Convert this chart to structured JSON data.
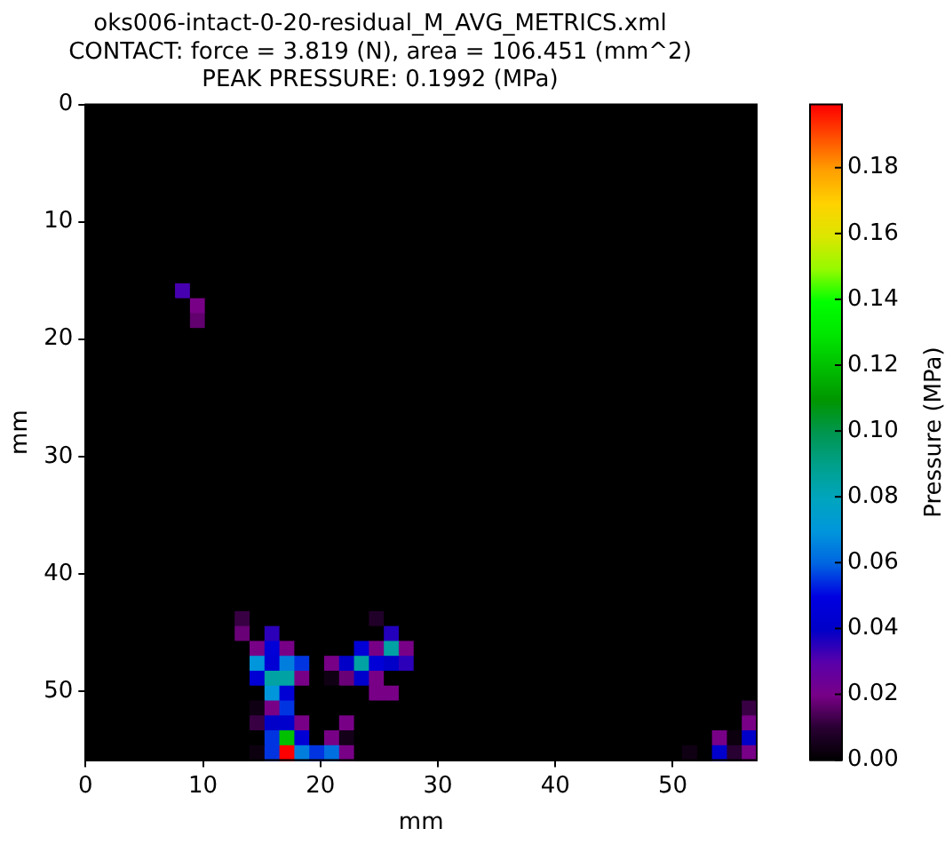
{
  "chart_data": {
    "type": "heatmap",
    "title": "oks006-intact-0-20-residual_M_AVG_METRICS.xml\nCONTACT: force = 3.819 (N), area = 106.451 (mm^2)\nPEAK PRESSURE: 0.1992 (MPa)",
    "xlabel": "mm",
    "ylabel": "mm",
    "clabel": "Pressure (MPa)",
    "xlim": [
      0,
      57.15
    ],
    "xticks": [
      0,
      10,
      20,
      30,
      40,
      50
    ],
    "ylim": [
      55.88,
      0
    ],
    "yticks": [
      0,
      10,
      20,
      30,
      40,
      50
    ],
    "clim": [
      0,
      0.1992
    ],
    "cticks": [
      {
        "value": 0,
        "label": "0.00"
      },
      0.02,
      0.04,
      0.06,
      0.08,
      {
        "value": 0.1,
        "label": "0.10"
      },
      0.12,
      0.14,
      0.16,
      0.18
    ],
    "cells": [
      [
        0,
        0,
        0,
        0,
        0,
        0,
        0,
        0,
        0,
        0,
        0,
        0,
        0,
        0,
        0,
        0,
        0,
        0,
        0,
        0,
        0,
        0,
        0,
        0,
        0,
        0,
        0,
        0,
        0,
        0,
        0,
        0,
        0,
        0,
        0,
        0,
        0,
        0,
        0,
        0,
        0,
        0,
        0,
        0,
        0
      ],
      [
        0,
        0,
        0,
        0,
        0,
        0,
        0,
        0,
        0,
        0,
        0,
        0,
        0,
        0,
        0,
        0,
        0,
        0,
        0,
        0,
        0,
        0,
        0,
        0,
        0,
        0,
        0,
        0,
        0,
        0,
        0,
        0,
        0,
        0,
        0,
        0,
        0,
        0,
        0,
        0,
        0,
        0,
        0,
        0,
        0
      ],
      [
        0,
        0,
        0,
        0,
        0,
        0,
        0,
        0,
        0,
        0,
        0,
        0,
        0,
        0,
        0,
        0,
        0,
        0,
        0,
        0,
        0,
        0,
        0,
        0,
        0,
        0,
        0,
        0,
        0,
        0,
        0,
        0,
        0,
        0,
        0,
        0,
        0,
        0,
        0,
        0,
        0,
        0,
        0,
        0,
        0
      ],
      [
        0,
        0,
        0,
        0,
        0,
        0,
        0,
        0,
        0,
        0,
        0,
        0,
        0,
        0,
        0,
        0,
        0,
        0,
        0,
        0,
        0,
        0,
        0,
        0,
        0,
        0,
        0,
        0,
        0,
        0,
        0,
        0,
        0,
        0,
        0,
        0,
        0,
        0,
        0,
        0,
        0,
        0,
        0,
        0,
        0
      ],
      [
        0,
        0,
        0,
        0,
        0,
        0,
        0,
        0,
        0,
        0,
        0,
        0,
        0,
        0,
        0,
        0,
        0,
        0,
        0,
        0,
        0,
        0,
        0,
        0,
        0,
        0,
        0,
        0,
        0,
        0,
        0,
        0,
        0,
        0,
        0,
        0,
        0,
        0,
        0,
        0,
        0,
        0,
        0,
        0,
        0
      ],
      [
        0,
        0,
        0,
        0,
        0,
        0,
        0,
        0,
        0,
        0,
        0,
        0,
        0,
        0,
        0,
        0,
        0,
        0,
        0,
        0,
        0,
        0,
        0,
        0,
        0,
        0,
        0,
        0,
        0,
        0,
        0,
        0,
        0,
        0,
        0,
        0,
        0,
        0,
        0,
        0,
        0,
        0,
        0,
        0,
        0
      ],
      [
        0,
        0,
        0,
        0,
        0,
        0,
        0,
        0,
        0,
        0,
        0,
        0,
        0,
        0,
        0,
        0,
        0,
        0,
        0,
        0,
        0,
        0,
        0,
        0,
        0,
        0,
        0,
        0,
        0,
        0,
        0,
        0,
        0,
        0,
        0,
        0,
        0,
        0,
        0,
        0,
        0,
        0,
        0,
        0,
        0
      ],
      [
        0,
        0,
        0,
        0,
        0,
        0,
        0,
        0,
        0,
        0,
        0,
        0,
        0,
        0,
        0,
        0,
        0,
        0,
        0,
        0,
        0,
        0,
        0,
        0,
        0,
        0,
        0,
        0,
        0,
        0,
        0,
        0,
        0,
        0,
        0,
        0,
        0,
        0,
        0,
        0,
        0,
        0,
        0,
        0,
        0
      ],
      [
        0,
        0,
        0,
        0,
        0,
        0,
        0,
        0,
        0,
        0,
        0,
        0,
        0,
        0,
        0,
        0,
        0,
        0,
        0,
        0,
        0,
        0,
        0,
        0,
        0,
        0,
        0,
        0,
        0,
        0,
        0,
        0,
        0,
        0,
        0,
        0,
        0,
        0,
        0,
        0,
        0,
        0,
        0,
        0,
        0
      ],
      [
        0,
        0,
        0,
        0,
        0,
        0,
        0,
        0,
        0,
        0,
        0,
        0,
        0,
        0,
        0,
        0,
        0,
        0,
        0,
        0,
        0,
        0,
        0,
        0,
        0,
        0,
        0,
        0,
        0,
        0,
        0,
        0,
        0,
        0,
        0,
        0,
        0,
        0,
        0,
        0,
        0,
        0,
        0,
        0,
        0
      ],
      [
        0,
        0,
        0,
        0,
        0,
        0,
        0,
        0,
        0,
        0,
        0,
        0,
        0,
        0,
        0,
        0,
        0,
        0,
        0,
        0,
        0,
        0,
        0,
        0,
        0,
        0,
        0,
        0,
        0,
        0,
        0,
        0,
        0,
        0,
        0,
        0,
        0,
        0,
        0,
        0,
        0,
        0,
        0,
        0,
        0
      ],
      [
        0,
        0,
        0,
        0,
        0,
        0,
        0,
        0,
        0,
        0,
        0,
        0,
        0,
        0,
        0,
        0,
        0,
        0,
        0,
        0,
        0,
        0,
        0,
        0,
        0,
        0,
        0,
        0,
        0,
        0,
        0,
        0,
        0,
        0,
        0,
        0,
        0,
        0,
        0,
        0,
        0,
        0,
        0,
        0,
        0
      ],
      [
        0,
        0,
        0,
        0,
        0,
        0,
        0.032,
        0,
        0,
        0,
        0,
        0,
        0,
        0,
        0,
        0,
        0,
        0,
        0,
        0,
        0,
        0,
        0,
        0,
        0,
        0,
        0,
        0,
        0,
        0,
        0,
        0,
        0,
        0,
        0,
        0,
        0,
        0,
        0,
        0,
        0,
        0,
        0,
        0,
        0
      ],
      [
        0,
        0,
        0,
        0,
        0,
        0,
        0,
        0.02,
        0,
        0,
        0,
        0,
        0,
        0,
        0,
        0,
        0,
        0,
        0,
        0,
        0,
        0,
        0,
        0,
        0,
        0,
        0,
        0,
        0,
        0,
        0,
        0,
        0,
        0,
        0,
        0,
        0,
        0,
        0,
        0,
        0,
        0,
        0,
        0,
        0
      ],
      [
        0,
        0,
        0,
        0,
        0,
        0,
        0,
        0.017,
        0,
        0,
        0,
        0,
        0,
        0,
        0,
        0,
        0,
        0,
        0,
        0,
        0,
        0,
        0,
        0,
        0,
        0,
        0,
        0,
        0,
        0,
        0,
        0,
        0,
        0,
        0,
        0,
        0,
        0,
        0,
        0,
        0,
        0,
        0,
        0,
        0
      ],
      [
        0,
        0,
        0,
        0,
        0,
        0,
        0,
        0,
        0,
        0,
        0,
        0,
        0,
        0,
        0,
        0,
        0,
        0,
        0,
        0,
        0,
        0,
        0,
        0,
        0,
        0,
        0,
        0,
        0,
        0,
        0,
        0,
        0,
        0,
        0,
        0,
        0,
        0,
        0,
        0,
        0,
        0,
        0,
        0,
        0
      ],
      [
        0,
        0,
        0,
        0,
        0,
        0,
        0,
        0,
        0,
        0,
        0,
        0,
        0,
        0,
        0,
        0,
        0,
        0,
        0,
        0,
        0,
        0,
        0,
        0,
        0,
        0,
        0,
        0,
        0,
        0,
        0,
        0,
        0,
        0,
        0,
        0,
        0,
        0,
        0,
        0,
        0,
        0,
        0,
        0,
        0
      ],
      [
        0,
        0,
        0,
        0,
        0,
        0,
        0,
        0,
        0,
        0,
        0,
        0,
        0,
        0,
        0,
        0,
        0,
        0,
        0,
        0,
        0,
        0,
        0,
        0,
        0,
        0,
        0,
        0,
        0,
        0,
        0,
        0,
        0,
        0,
        0,
        0,
        0,
        0,
        0,
        0,
        0,
        0,
        0,
        0,
        0
      ],
      [
        0,
        0,
        0,
        0,
        0,
        0,
        0,
        0,
        0,
        0,
        0,
        0,
        0,
        0,
        0,
        0,
        0,
        0,
        0,
        0,
        0,
        0,
        0,
        0,
        0,
        0,
        0,
        0,
        0,
        0,
        0,
        0,
        0,
        0,
        0,
        0,
        0,
        0,
        0,
        0,
        0,
        0,
        0,
        0,
        0
      ],
      [
        0,
        0,
        0,
        0,
        0,
        0,
        0,
        0,
        0,
        0,
        0,
        0,
        0,
        0,
        0,
        0,
        0,
        0,
        0,
        0,
        0,
        0,
        0,
        0,
        0,
        0,
        0,
        0,
        0,
        0,
        0,
        0,
        0,
        0,
        0,
        0,
        0,
        0,
        0,
        0,
        0,
        0,
        0,
        0,
        0
      ],
      [
        0,
        0,
        0,
        0,
        0,
        0,
        0,
        0,
        0,
        0,
        0,
        0,
        0,
        0,
        0,
        0,
        0,
        0,
        0,
        0,
        0,
        0,
        0,
        0,
        0,
        0,
        0,
        0,
        0,
        0,
        0,
        0,
        0,
        0,
        0,
        0,
        0,
        0,
        0,
        0,
        0,
        0,
        0,
        0,
        0
      ],
      [
        0,
        0,
        0,
        0,
        0,
        0,
        0,
        0,
        0,
        0,
        0,
        0,
        0,
        0,
        0,
        0,
        0,
        0,
        0,
        0,
        0,
        0,
        0,
        0,
        0,
        0,
        0,
        0,
        0,
        0,
        0,
        0,
        0,
        0,
        0,
        0,
        0,
        0,
        0,
        0,
        0,
        0,
        0,
        0,
        0
      ],
      [
        0,
        0,
        0,
        0,
        0,
        0,
        0,
        0,
        0,
        0,
        0,
        0,
        0,
        0,
        0,
        0,
        0,
        0,
        0,
        0,
        0,
        0,
        0,
        0,
        0,
        0,
        0,
        0,
        0,
        0,
        0,
        0,
        0,
        0,
        0,
        0,
        0,
        0,
        0,
        0,
        0,
        0,
        0,
        0,
        0
      ],
      [
        0,
        0,
        0,
        0,
        0,
        0,
        0,
        0,
        0,
        0,
        0,
        0,
        0,
        0,
        0,
        0,
        0,
        0,
        0,
        0,
        0,
        0,
        0,
        0,
        0,
        0,
        0,
        0,
        0,
        0,
        0,
        0,
        0,
        0,
        0,
        0,
        0,
        0,
        0,
        0,
        0,
        0,
        0,
        0,
        0
      ],
      [
        0,
        0,
        0,
        0,
        0,
        0,
        0,
        0,
        0,
        0,
        0,
        0,
        0,
        0,
        0,
        0,
        0,
        0,
        0,
        0,
        0,
        0,
        0,
        0,
        0,
        0,
        0,
        0,
        0,
        0,
        0,
        0,
        0,
        0,
        0,
        0,
        0,
        0,
        0,
        0,
        0,
        0,
        0,
        0,
        0
      ],
      [
        0,
        0,
        0,
        0,
        0,
        0,
        0,
        0,
        0,
        0,
        0,
        0,
        0,
        0,
        0,
        0,
        0,
        0,
        0,
        0,
        0,
        0,
        0,
        0,
        0,
        0,
        0,
        0,
        0,
        0,
        0,
        0,
        0,
        0,
        0,
        0,
        0,
        0,
        0,
        0,
        0,
        0,
        0,
        0,
        0
      ],
      [
        0,
        0,
        0,
        0,
        0,
        0,
        0,
        0,
        0,
        0,
        0,
        0,
        0,
        0,
        0,
        0,
        0,
        0,
        0,
        0,
        0,
        0,
        0,
        0,
        0,
        0,
        0,
        0,
        0,
        0,
        0,
        0,
        0,
        0,
        0,
        0,
        0,
        0,
        0,
        0,
        0,
        0,
        0,
        0,
        0
      ],
      [
        0,
        0,
        0,
        0,
        0,
        0,
        0,
        0,
        0,
        0,
        0,
        0,
        0,
        0,
        0,
        0,
        0,
        0,
        0,
        0,
        0,
        0,
        0,
        0,
        0,
        0,
        0,
        0,
        0,
        0,
        0,
        0,
        0,
        0,
        0,
        0,
        0,
        0,
        0,
        0,
        0,
        0,
        0,
        0,
        0
      ],
      [
        0,
        0,
        0,
        0,
        0,
        0,
        0,
        0,
        0,
        0,
        0,
        0,
        0,
        0,
        0,
        0,
        0,
        0,
        0,
        0,
        0,
        0,
        0,
        0,
        0,
        0,
        0,
        0,
        0,
        0,
        0,
        0,
        0,
        0,
        0,
        0,
        0,
        0,
        0,
        0,
        0,
        0,
        0,
        0,
        0
      ],
      [
        0,
        0,
        0,
        0,
        0,
        0,
        0,
        0,
        0,
        0,
        0,
        0,
        0,
        0,
        0,
        0,
        0,
        0,
        0,
        0,
        0,
        0,
        0,
        0,
        0,
        0,
        0,
        0,
        0,
        0,
        0,
        0,
        0,
        0,
        0,
        0,
        0,
        0,
        0,
        0,
        0,
        0,
        0,
        0,
        0
      ],
      [
        0,
        0,
        0,
        0,
        0,
        0,
        0,
        0,
        0,
        0,
        0,
        0,
        0,
        0,
        0,
        0,
        0,
        0,
        0,
        0,
        0,
        0,
        0,
        0,
        0,
        0,
        0,
        0,
        0,
        0,
        0,
        0,
        0,
        0,
        0,
        0,
        0,
        0,
        0,
        0,
        0,
        0,
        0,
        0,
        0
      ],
      [
        0,
        0,
        0,
        0,
        0,
        0,
        0,
        0,
        0,
        0,
        0,
        0,
        0,
        0,
        0,
        0,
        0,
        0,
        0,
        0,
        0,
        0,
        0,
        0,
        0,
        0,
        0,
        0,
        0,
        0,
        0,
        0,
        0,
        0,
        0,
        0,
        0,
        0,
        0,
        0,
        0,
        0,
        0,
        0,
        0
      ],
      [
        0,
        0,
        0,
        0,
        0,
        0,
        0,
        0,
        0,
        0,
        0,
        0,
        0,
        0,
        0,
        0,
        0,
        0,
        0,
        0,
        0,
        0,
        0,
        0,
        0,
        0,
        0,
        0,
        0,
        0,
        0,
        0,
        0,
        0,
        0,
        0,
        0,
        0,
        0,
        0,
        0,
        0,
        0,
        0,
        0
      ],
      [
        0,
        0,
        0,
        0,
        0,
        0,
        0,
        0,
        0,
        0,
        0,
        0,
        0,
        0,
        0,
        0,
        0,
        0,
        0,
        0,
        0,
        0,
        0,
        0,
        0,
        0,
        0,
        0,
        0,
        0,
        0,
        0,
        0,
        0,
        0,
        0,
        0,
        0,
        0,
        0,
        0,
        0,
        0,
        0,
        0
      ],
      [
        0,
        0,
        0,
        0,
        0,
        0,
        0,
        0,
        0,
        0,
        0.012,
        0,
        0,
        0,
        0,
        0,
        0,
        0,
        0,
        0.008,
        0,
        0,
        0,
        0,
        0,
        0,
        0,
        0,
        0,
        0,
        0,
        0,
        0,
        0,
        0,
        0,
        0,
        0,
        0,
        0,
        0,
        0,
        0,
        0,
        0
      ],
      [
        0,
        0,
        0,
        0,
        0,
        0,
        0,
        0,
        0,
        0,
        0.018,
        0,
        0.035,
        0,
        0,
        0,
        0,
        0,
        0,
        0,
        0.036,
        0,
        0,
        0,
        0,
        0,
        0,
        0,
        0,
        0,
        0,
        0,
        0,
        0,
        0,
        0,
        0,
        0,
        0,
        0,
        0,
        0,
        0,
        0,
        0
      ],
      [
        0,
        0,
        0,
        0,
        0,
        0,
        0,
        0,
        0,
        0,
        0,
        0.02,
        0.046,
        0.02,
        0,
        0,
        0,
        0,
        0.046,
        0.02,
        0.085,
        0.02,
        0,
        0,
        0,
        0,
        0,
        0,
        0,
        0,
        0,
        0,
        0,
        0,
        0,
        0,
        0,
        0,
        0,
        0,
        0,
        0,
        0,
        0,
        0
      ],
      [
        0,
        0,
        0,
        0,
        0,
        0,
        0,
        0,
        0,
        0,
        0,
        0.07,
        0.045,
        0.065,
        0.055,
        0,
        0.02,
        0.04,
        0.085,
        0.046,
        0.04,
        0.035,
        0,
        0,
        0,
        0,
        0,
        0,
        0,
        0,
        0,
        0,
        0,
        0,
        0,
        0,
        0,
        0,
        0,
        0,
        0,
        0,
        0,
        0,
        0
      ],
      [
        0,
        0,
        0,
        0,
        0,
        0,
        0,
        0,
        0,
        0,
        0,
        0.045,
        0.085,
        0.085,
        0.02,
        0,
        0.004,
        0.018,
        0.042,
        0.02,
        0,
        0,
        0,
        0,
        0,
        0,
        0,
        0,
        0,
        0,
        0,
        0,
        0,
        0,
        0,
        0,
        0,
        0,
        0,
        0,
        0,
        0,
        0,
        0,
        0
      ],
      [
        0,
        0,
        0,
        0,
        0,
        0,
        0,
        0,
        0,
        0,
        0,
        0,
        0.07,
        0.045,
        0,
        0,
        0,
        0,
        0,
        0.02,
        0.02,
        0,
        0,
        0,
        0,
        0,
        0,
        0,
        0,
        0,
        0,
        0,
        0,
        0,
        0,
        0,
        0,
        0,
        0,
        0,
        0,
        0,
        0,
        0,
        0
      ],
      [
        0,
        0,
        0,
        0,
        0,
        0,
        0,
        0,
        0,
        0,
        0,
        0.004,
        0.02,
        0.055,
        0,
        0,
        0,
        0,
        0,
        0,
        0,
        0,
        0,
        0,
        0,
        0,
        0,
        0,
        0,
        0,
        0,
        0,
        0,
        0,
        0,
        0,
        0,
        0,
        0,
        0,
        0,
        0,
        0,
        0,
        0.012
      ],
      [
        0,
        0,
        0,
        0,
        0,
        0,
        0,
        0,
        0,
        0,
        0,
        0.012,
        0.04,
        0.042,
        0.02,
        0,
        0,
        0.02,
        0,
        0,
        0,
        0,
        0,
        0,
        0,
        0,
        0,
        0,
        0,
        0,
        0,
        0,
        0,
        0,
        0,
        0,
        0,
        0,
        0,
        0,
        0,
        0,
        0,
        0,
        0.02
      ],
      [
        0,
        0,
        0,
        0,
        0,
        0,
        0,
        0,
        0,
        0,
        0,
        0,
        0.055,
        0.12,
        0.045,
        0,
        0.02,
        0.005,
        0,
        0,
        0,
        0,
        0,
        0,
        0,
        0,
        0,
        0,
        0,
        0,
        0,
        0,
        0,
        0,
        0,
        0,
        0,
        0,
        0,
        0,
        0,
        0,
        0.02,
        0.003,
        0.04
      ],
      [
        0,
        0,
        0,
        0,
        0,
        0,
        0,
        0,
        0,
        0,
        0,
        0.003,
        0.055,
        0.1992,
        0.065,
        0.055,
        0.062,
        0.02,
        0,
        0,
        0,
        0,
        0,
        0,
        0,
        0,
        0,
        0,
        0,
        0,
        0,
        0,
        0,
        0,
        0,
        0,
        0,
        0,
        0,
        0,
        0.004,
        0,
        0.042,
        0.01,
        0.02
      ]
    ]
  }
}
